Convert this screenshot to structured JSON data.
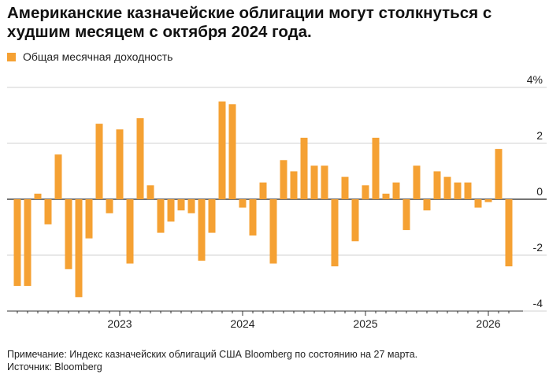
{
  "title": "Американские казначейские облигации могут столкнуться с худшим месяцем с октября 2024 года.",
  "legend": {
    "label": "Общая месячная доходность",
    "color": "#f5a133"
  },
  "footer": {
    "note": "Примечание: Индекс казначейских облигаций США Bloomberg по состоянию на 27 марта.",
    "source": "Источник: Bloomberg"
  },
  "chart_data": {
    "type": "bar",
    "title": "Американские казначейские облигации могут столкнуться с худшим месяцем с октября 2024 года.",
    "series": [
      {
        "name": "Общая месячная доходность",
        "values": [
          -3.1,
          -3.1,
          0.2,
          -0.9,
          1.6,
          -2.5,
          -3.5,
          -1.4,
          2.7,
          -0.5,
          2.5,
          -2.3,
          2.9,
          0.5,
          -1.2,
          -0.8,
          -0.4,
          -0.5,
          -2.2,
          -1.2,
          3.5,
          3.4,
          -0.3,
          -1.3,
          0.6,
          -2.3,
          1.4,
          1.0,
          2.2,
          1.2,
          1.2,
          -2.4,
          0.8,
          -1.5,
          0.5,
          2.2,
          0.2,
          0.6,
          -1.1,
          1.2,
          -0.4,
          1.0,
          0.8,
          0.6,
          0.6,
          -0.3,
          -0.1,
          1.8,
          -2.4
        ]
      }
    ],
    "start": "2022-03",
    "x_tick_labels": [
      "2023",
      "2024",
      "2025",
      "2026"
    ],
    "y_ticks": [
      4,
      2,
      0,
      -2,
      -4
    ],
    "y_tick_labels": [
      "4%",
      "2",
      "0",
      "-2",
      "-4"
    ],
    "ylim": [
      -4,
      4
    ],
    "xlabel": "",
    "ylabel": "",
    "color": "#f5a133",
    "grid": true
  }
}
